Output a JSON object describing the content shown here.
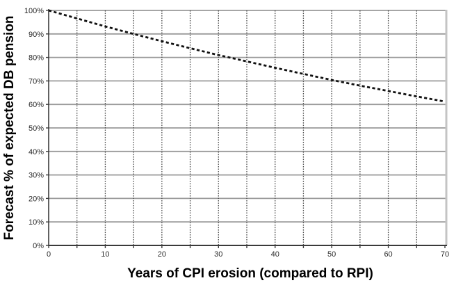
{
  "chart_data": {
    "type": "line",
    "title": "",
    "xlabel": "Years of CPI erosion (compared to RPI)",
    "ylabel": "Forecast % of expected DB pension",
    "xlim": [
      0,
      70
    ],
    "ylim": [
      0,
      100
    ],
    "x_tick_values": [
      0,
      10,
      20,
      30,
      40,
      50,
      60,
      70
    ],
    "x_tick_labels": [
      "0",
      "10",
      "20",
      "30",
      "40",
      "50",
      "60",
      "70"
    ],
    "x_minor_tick_step": 5,
    "y_tick_values": [
      0,
      10,
      20,
      30,
      40,
      50,
      60,
      70,
      80,
      90,
      100
    ],
    "y_tick_labels": [
      "0%",
      "10%",
      "20%",
      "30%",
      "40%",
      "50%",
      "60%",
      "70%",
      "80%",
      "90%",
      "100%"
    ],
    "grid": {
      "horizontal": true,
      "vertical": true
    },
    "legend": "none",
    "series": [
      {
        "name": "Forecast % of expected DB pension",
        "line_style": "dashed",
        "color": "#111111",
        "x": [
          0,
          5,
          10,
          15,
          20,
          25,
          30,
          35,
          40,
          45,
          50,
          55,
          60,
          65,
          70
        ],
        "y": [
          100,
          96.6,
          93.2,
          90.0,
          86.9,
          83.9,
          81.0,
          78.3,
          75.6,
          73.0,
          70.4,
          68.0,
          65.7,
          63.4,
          61.2
        ]
      }
    ]
  },
  "colors": {
    "background": "#ffffff",
    "axis": "#3a3a3a",
    "grid_horizontal": "#9a9a9a",
    "grid_vertical": "#4a4a4a",
    "plot_right_border": "#c4c4c4",
    "tick_label": "#2a2a2a",
    "axis_title": "#000000",
    "series_line": "#111111"
  }
}
